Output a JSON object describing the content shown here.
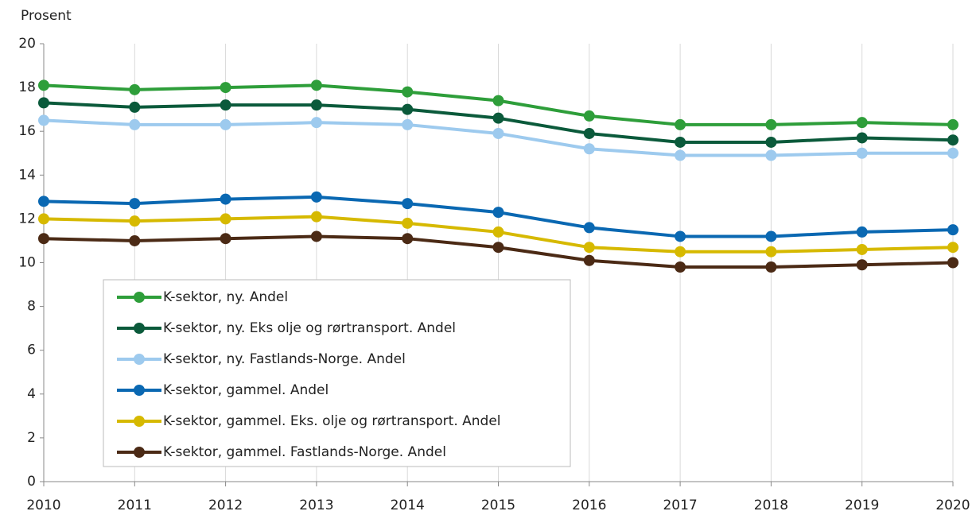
{
  "chart_data": {
    "type": "line",
    "y_axis_label": "Prosent",
    "x": [
      2010,
      2011,
      2012,
      2013,
      2014,
      2015,
      2016,
      2017,
      2018,
      2019,
      2020
    ],
    "xlim": [
      2010,
      2020
    ],
    "xticks": [
      2010,
      2011,
      2012,
      2013,
      2014,
      2015,
      2016,
      2017,
      2018,
      2019,
      2020
    ],
    "ylim": [
      0,
      20
    ],
    "yticks": [
      0,
      2,
      4,
      6,
      8,
      10,
      12,
      14,
      16,
      18,
      20
    ],
    "grid": "x",
    "legend": "lower left",
    "series": [
      {
        "name": "K-sektor, ny. Andel",
        "color": "#2e9e3a",
        "values": [
          18.1,
          17.9,
          18.0,
          18.1,
          17.8,
          17.4,
          16.7,
          16.3,
          16.3,
          16.4,
          16.3
        ]
      },
      {
        "name": "K-sektor, ny. Eks olje og rørtransport. Andel",
        "color": "#0b5a3b",
        "values": [
          17.3,
          17.1,
          17.2,
          17.2,
          17.0,
          16.6,
          15.9,
          15.5,
          15.5,
          15.7,
          15.6
        ]
      },
      {
        "name": "K-sektor, ny. Fastlands-Norge. Andel",
        "color": "#9dcaee",
        "values": [
          16.5,
          16.3,
          16.3,
          16.4,
          16.3,
          15.9,
          15.2,
          14.9,
          14.9,
          15.0,
          15.0
        ]
      },
      {
        "name": "K-sektor, gammel. Andel",
        "color": "#0a68b2",
        "values": [
          12.8,
          12.7,
          12.9,
          13.0,
          12.7,
          12.3,
          11.6,
          11.2,
          11.2,
          11.4,
          11.5
        ]
      },
      {
        "name": "K-sektor, gammel. Eks. olje og rørtransport. Andel",
        "color": "#d6b900",
        "values": [
          12.0,
          11.9,
          12.0,
          12.1,
          11.8,
          11.4,
          10.7,
          10.5,
          10.5,
          10.6,
          10.7
        ]
      },
      {
        "name": "K-sektor, gammel. Fastlands-Norge. Andel",
        "color": "#4b2a15",
        "values": [
          11.1,
          11.0,
          11.1,
          11.2,
          11.1,
          10.7,
          10.1,
          9.8,
          9.8,
          9.9,
          10.0
        ]
      }
    ]
  }
}
